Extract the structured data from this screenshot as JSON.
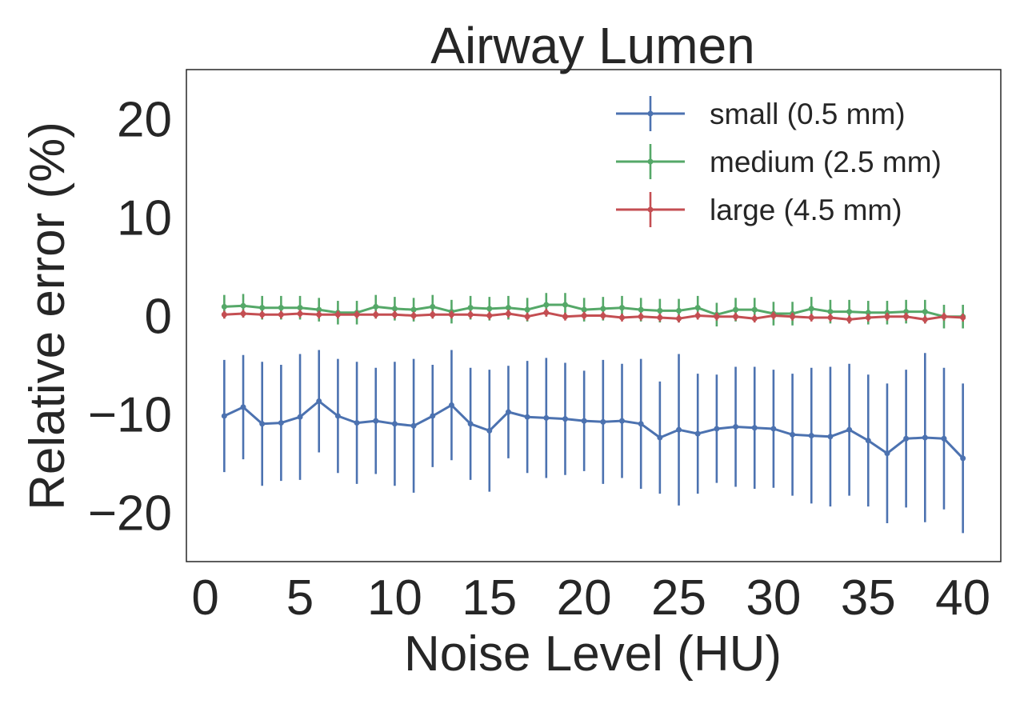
{
  "chart_data": {
    "type": "line",
    "title": "Airway Lumen",
    "xlabel": "Noise Level (HU)",
    "ylabel": "Relative error (%)",
    "xlim": [
      -1,
      42
    ],
    "ylim": [
      -25,
      25
    ],
    "xticks": [
      0,
      5,
      10,
      15,
      20,
      25,
      30,
      35,
      40
    ],
    "xtick_labels": [
      "0",
      "5",
      "10",
      "15",
      "20",
      "25",
      "30",
      "35",
      "40"
    ],
    "yticks": [
      20,
      10,
      0,
      -10,
      -20
    ],
    "ytick_labels": [
      "20",
      "10",
      "0",
      "−10",
      "−20"
    ],
    "grid": false,
    "legend_position": "top-right",
    "error_bars": true,
    "x": [
      1,
      2,
      3,
      4,
      5,
      6,
      7,
      8,
      9,
      10,
      11,
      12,
      13,
      14,
      15,
      16,
      17,
      18,
      19,
      20,
      21,
      22,
      23,
      24,
      25,
      26,
      27,
      28,
      29,
      30,
      31,
      32,
      33,
      34,
      35,
      36,
      37,
      38,
      39,
      40
    ],
    "series": [
      {
        "name": "small (0.5 mm)",
        "color": "#4c72b0",
        "values": [
          -10.2,
          -9.3,
          -11.0,
          -10.9,
          -10.3,
          -8.7,
          -10.2,
          -10.9,
          -10.7,
          -11.0,
          -11.2,
          -10.2,
          -9.1,
          -11.0,
          -11.7,
          -9.8,
          -10.3,
          -10.4,
          -10.5,
          -10.7,
          -10.8,
          -10.7,
          -11.0,
          -12.4,
          -11.6,
          -12.0,
          -11.5,
          -11.3,
          -11.4,
          -11.5,
          -12.1,
          -12.2,
          -12.3,
          -11.6,
          -12.7,
          -14.0,
          -12.5,
          -12.4,
          -12.5,
          -14.5
        ],
        "errors": [
          5.7,
          5.3,
          6.3,
          5.9,
          6.4,
          5.2,
          5.8,
          6.2,
          5.4,
          6.3,
          6.8,
          5.2,
          5.6,
          5.7,
          6.2,
          4.7,
          5.7,
          6.1,
          5.7,
          5.1,
          6.3,
          5.8,
          6.6,
          5.7,
          7.7,
          6.1,
          5.5,
          6.1,
          6.2,
          6.0,
          6.2,
          6.9,
          7.1,
          6.7,
          6.7,
          7.1,
          7.0,
          8.6,
          7.2,
          7.6
        ]
      },
      {
        "name": "medium (2.5 mm)",
        "color": "#55a868",
        "values": [
          0.9,
          1.0,
          0.8,
          0.8,
          0.8,
          0.6,
          0.3,
          0.3,
          0.9,
          0.7,
          0.6,
          0.9,
          0.4,
          0.8,
          0.7,
          0.8,
          0.6,
          1.1,
          1.1,
          0.6,
          0.7,
          0.8,
          0.6,
          0.5,
          0.5,
          0.8,
          0.1,
          0.6,
          0.6,
          0.2,
          0.2,
          0.7,
          0.4,
          0.4,
          0.3,
          0.3,
          0.4,
          0.4,
          -0.1,
          -0.1
        ],
        "errors": [
          1.2,
          1.2,
          1.2,
          1.2,
          1.2,
          1.2,
          1.2,
          1.2,
          1.2,
          1.2,
          1.2,
          1.2,
          1.2,
          1.2,
          1.2,
          1.2,
          1.2,
          1.2,
          1.2,
          1.2,
          1.2,
          1.2,
          1.2,
          1.2,
          1.2,
          1.2,
          1.2,
          1.2,
          1.2,
          1.2,
          1.2,
          1.2,
          1.2,
          1.2,
          1.2,
          1.2,
          1.2,
          1.2,
          1.2,
          1.2
        ]
      },
      {
        "name": "large (4.5 mm)",
        "color": "#c44e52",
        "values": [
          0.1,
          0.2,
          0.1,
          0.1,
          0.2,
          0.1,
          0.1,
          0.1,
          0.1,
          0.1,
          0.0,
          0.1,
          0.1,
          0.1,
          0.0,
          0.2,
          -0.1,
          0.3,
          -0.1,
          0.0,
          0.0,
          -0.2,
          -0.1,
          -0.2,
          -0.3,
          0.0,
          -0.1,
          -0.1,
          -0.3,
          0.0,
          -0.1,
          -0.2,
          -0.2,
          -0.4,
          -0.2,
          -0.1,
          -0.1,
          -0.4,
          -0.1,
          -0.2
        ],
        "errors": [
          0.4,
          0.4,
          0.4,
          0.4,
          0.4,
          0.4,
          0.4,
          0.4,
          0.4,
          0.4,
          0.4,
          0.4,
          0.4,
          0.4,
          0.4,
          0.4,
          0.4,
          0.4,
          0.4,
          0.4,
          0.4,
          0.4,
          0.4,
          0.4,
          0.4,
          0.4,
          0.4,
          0.4,
          0.4,
          0.4,
          0.4,
          0.4,
          0.4,
          0.4,
          0.4,
          0.4,
          0.4,
          0.4,
          0.4,
          0.4
        ]
      }
    ]
  }
}
